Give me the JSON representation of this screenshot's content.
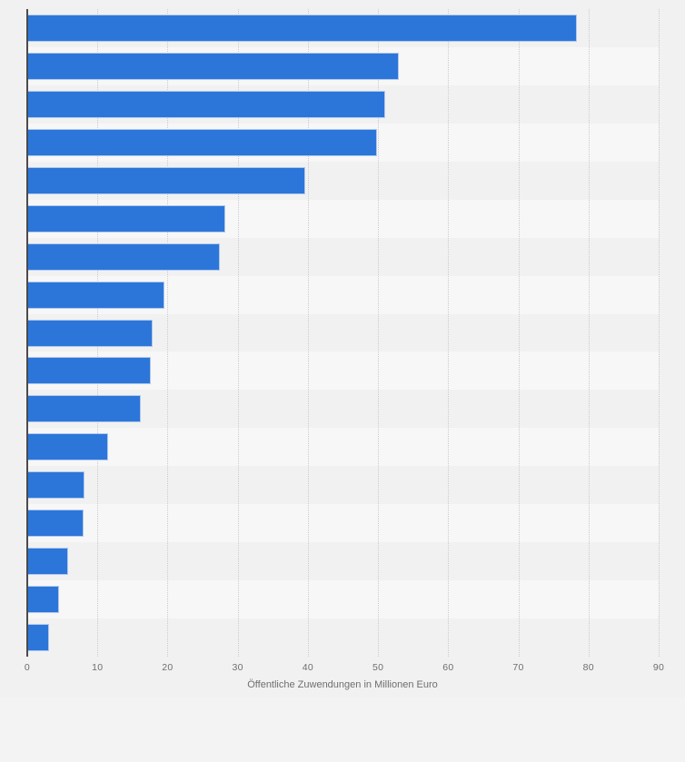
{
  "colors": {
    "page_background": "#f3f3f4",
    "chart_background": "#f1f1f2",
    "stripe_light": "#f7f7f8",
    "stripe_dark": "#f1f1f2",
    "bar_fill": "#2c76d9",
    "bar_border": "#b3c9ee",
    "axis_line": "#4b4b4b",
    "gridline": "#cbcbd1",
    "label_text": "#6e6e6e"
  },
  "chart_data": {
    "type": "bar",
    "orientation": "horizontal",
    "title": "",
    "xlabel": "Öffentliche Zuwendungen in Millionen Euro",
    "ylabel": "",
    "xlim": [
      0,
      90
    ],
    "x_ticks": [
      0,
      10,
      20,
      30,
      40,
      50,
      60,
      70,
      80,
      90
    ],
    "values": [
      78.3,
      53.0,
      51.0,
      49.9,
      39.6,
      28.2,
      27.5,
      19.5,
      17.9,
      17.6,
      16.2,
      11.5,
      8.2,
      8.0,
      5.8,
      4.5,
      3.1
    ],
    "category_labels_visible": false,
    "grid": "vertical dotted gridlines at each tick",
    "legend": "none",
    "row_striping": "alternating, first row dark"
  }
}
